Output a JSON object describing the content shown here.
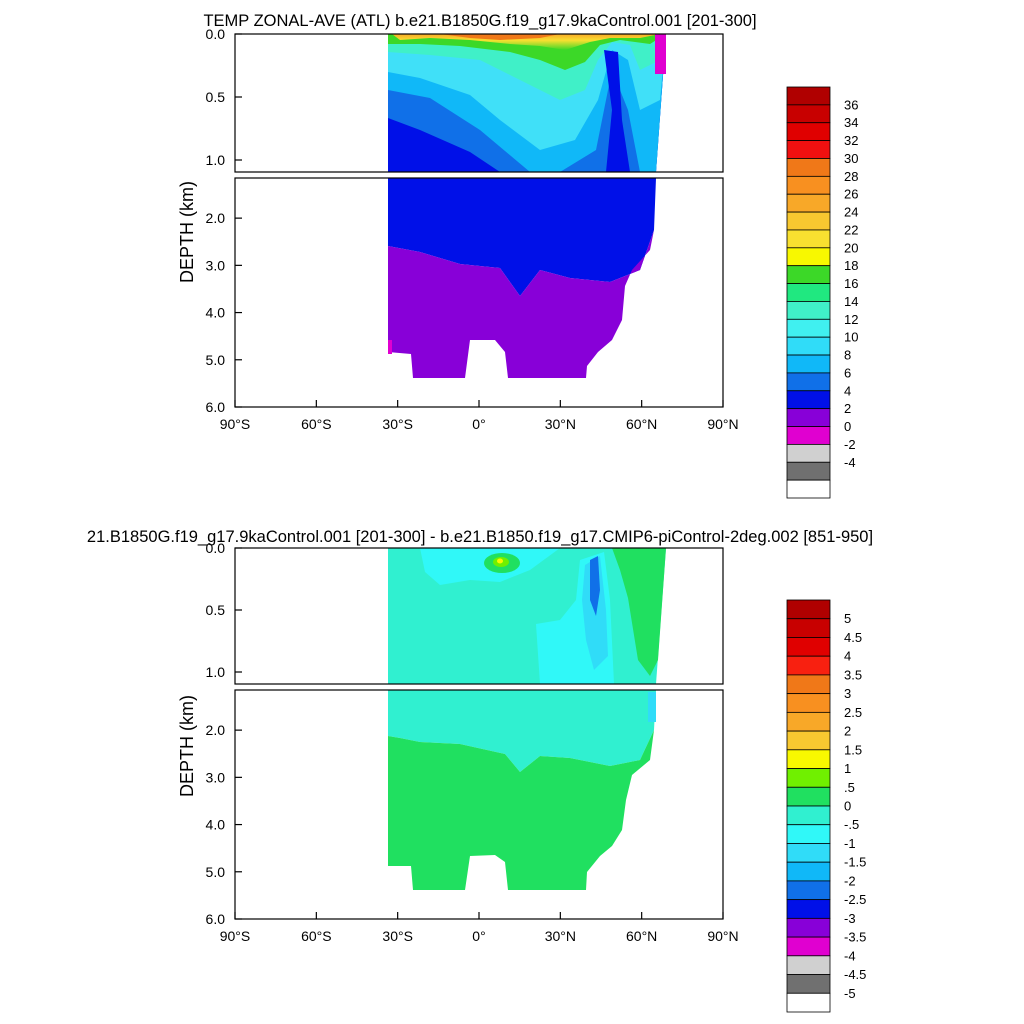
{
  "chart_data": [
    {
      "type": "heatmap",
      "title": "TEMP ZONAL-AVE (ATL) b.e21.B1850G.f19_g17.9kaControl.001 [201-300]",
      "ylabel": "DEPTH (km)",
      "xlabel": "",
      "x_ticks": [
        "90°S",
        "60°S",
        "30°S",
        "0°",
        "30°N",
        "60°N",
        "90°N"
      ],
      "y_ticks_upper": [
        "0.0",
        "0.5",
        "1.0"
      ],
      "y_ticks_lower": [
        "2.0",
        "3.0",
        "4.0",
        "5.0",
        "6.0"
      ],
      "xlim": [
        -90,
        90
      ],
      "ylim_km": [
        0,
        6
      ],
      "colorbar_labels": [
        "36",
        "34",
        "32",
        "30",
        "28",
        "26",
        "24",
        "22",
        "20",
        "18",
        "16",
        "14",
        "12",
        "10",
        "8",
        "6",
        "4",
        "2",
        "0",
        "-2",
        "-4"
      ],
      "colorbar_colors": [
        "#b00000",
        "#c80000",
        "#e00000",
        "#f01010",
        "#f07818",
        "#f89020",
        "#f8a828",
        "#f8c830",
        "#f8e030",
        "#f8f800",
        "#3cd828",
        "#20e880",
        "#40f0c8",
        "#40f0f0",
        "#30dcf8",
        "#10b8f8",
        "#1070e8",
        "#0010e8",
        "#8800d8",
        "#e000d0",
        "#d0d0d0",
        "#707070",
        "#ffffff"
      ]
    },
    {
      "type": "heatmap",
      "title": "21.B1850G.f19_g17.9kaControl.001 [201-300] - b.e21.B1850.f19_g17.CMIP6-piControl-2deg.002 [851-950]",
      "ylabel": "DEPTH (km)",
      "xlabel": "",
      "x_ticks": [
        "90°S",
        "60°S",
        "30°S",
        "0°",
        "30°N",
        "60°N",
        "90°N"
      ],
      "y_ticks_upper": [
        "0.0",
        "0.5",
        "1.0"
      ],
      "y_ticks_lower": [
        "2.0",
        "3.0",
        "4.0",
        "5.0",
        "6.0"
      ],
      "xlim": [
        -90,
        90
      ],
      "ylim_km": [
        0,
        6
      ],
      "colorbar_labels": [
        "5",
        "4.5",
        "4",
        "3.5",
        "3",
        "2.5",
        "2",
        "1.5",
        "1",
        ".5",
        "0",
        "-.5",
        "-1",
        "-1.5",
        "-2",
        "-2.5",
        "-3",
        "-3.5",
        "-4",
        "-4.5",
        "-5"
      ],
      "colorbar_colors": [
        "#b00000",
        "#c80000",
        "#e00000",
        "#f82010",
        "#f07818",
        "#f89020",
        "#f8a828",
        "#f8c830",
        "#f8f800",
        "#70f000",
        "#20e060",
        "#30f0d0",
        "#30f8f8",
        "#30dcf8",
        "#10b8f8",
        "#1070e8",
        "#0010e8",
        "#8800d8",
        "#e000d0",
        "#d0d0d0",
        "#707070",
        "#ffffff"
      ]
    }
  ]
}
